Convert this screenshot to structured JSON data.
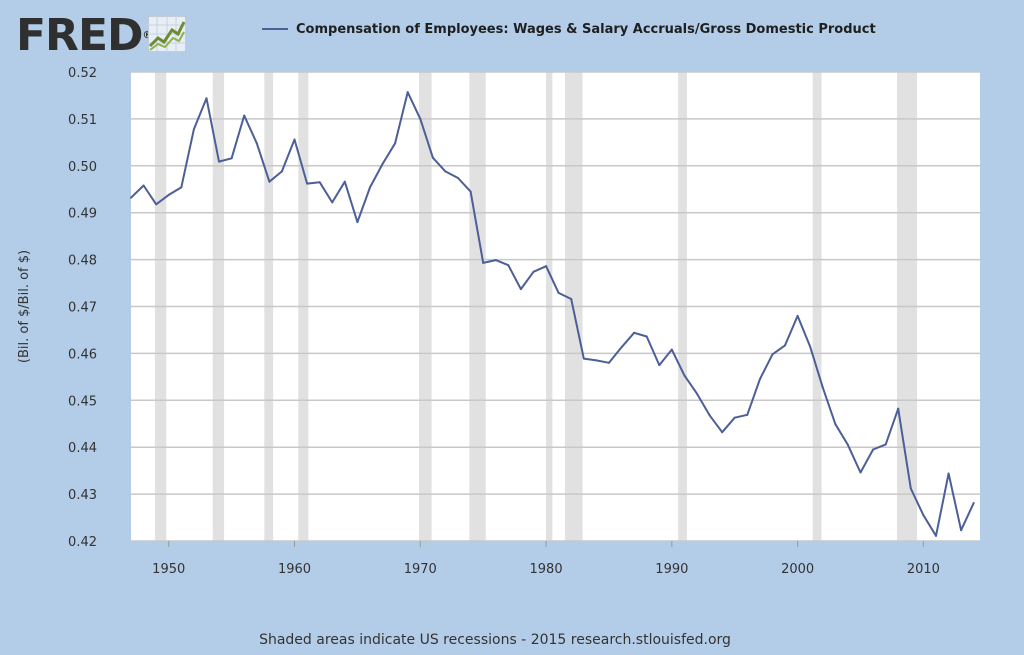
{
  "header": {
    "logo_text": "FRED",
    "logo_mark": "®"
  },
  "legend": {
    "label": "Compensation of Employees: Wages & Salary Accruals/Gross Domestic Product",
    "color": "#4c5f96"
  },
  "footer": {
    "note": "Shaded areas indicate US recessions - 2015 research.stlouisfed.org"
  },
  "colors": {
    "background": "#b3cde8",
    "plot": "#ffffff",
    "grid": "#c8c8c8",
    "recession": "#e1e1e1",
    "line": "#4c5f96"
  },
  "chart_data": {
    "type": "line",
    "title": "",
    "xlabel": "",
    "ylabel": "(Bil. of $/Bil. of $)",
    "xlim": [
      1947,
      2014.5
    ],
    "ylim": [
      0.42,
      0.52
    ],
    "xticks": [
      1950,
      1960,
      1970,
      1980,
      1990,
      2000,
      2010
    ],
    "yticks": [
      0.42,
      0.43,
      0.44,
      0.45,
      0.46,
      0.47,
      0.48,
      0.49,
      0.5,
      0.51,
      0.52
    ],
    "ytick_labels": [
      "0.42",
      "0.43",
      "0.44",
      "0.45",
      "0.46",
      "0.47",
      "0.48",
      "0.49",
      "0.50",
      "0.51",
      "0.52"
    ],
    "grid": true,
    "legend_position": "top",
    "recessions": [
      [
        1948.9,
        1949.8
      ],
      [
        1953.5,
        1954.4
      ],
      [
        1957.6,
        1958.3
      ],
      [
        1960.3,
        1961.1
      ],
      [
        1969.9,
        1970.9
      ],
      [
        1973.9,
        1975.2
      ],
      [
        1980.0,
        1980.5
      ],
      [
        1981.5,
        1982.9
      ],
      [
        1990.5,
        1991.2
      ],
      [
        2001.2,
        2001.9
      ],
      [
        2007.9,
        2009.5
      ]
    ],
    "series": [
      {
        "name": "Compensation of Employees: Wages & Salary Accruals/Gross Domestic Product",
        "x": [
          1947,
          1948,
          1949,
          1950,
          1951,
          1952,
          1953,
          1954,
          1955,
          1956,
          1957,
          1958,
          1959,
          1960,
          1961,
          1962,
          1963,
          1964,
          1965,
          1966,
          1967,
          1968,
          1969,
          1970,
          1971,
          1972,
          1973,
          1974,
          1975,
          1976,
          1977,
          1978,
          1979,
          1980,
          1981,
          1982,
          1983,
          1984,
          1985,
          1986,
          1987,
          1988,
          1989,
          1990,
          1991,
          1992,
          1993,
          1994,
          1995,
          1996,
          1997,
          1998,
          1999,
          2000,
          2001,
          2002,
          2003,
          2004,
          2005,
          2006,
          2007,
          2008,
          2009,
          2010,
          2011,
          2012,
          2013,
          2014
        ],
        "y": [
          0.4932,
          0.4958,
          0.4918,
          0.4938,
          0.4954,
          0.5078,
          0.5144,
          0.5009,
          0.5016,
          0.5107,
          0.5048,
          0.4966,
          0.4988,
          0.5056,
          0.4962,
          0.4965,
          0.4922,
          0.4966,
          0.488,
          0.4954,
          0.5004,
          0.5048,
          0.5157,
          0.51,
          0.5017,
          0.4988,
          0.4974,
          0.4945,
          0.4793,
          0.4799,
          0.4788,
          0.4737,
          0.4774,
          0.4786,
          0.4729,
          0.4716,
          0.4589,
          0.4585,
          0.458,
          0.4613,
          0.4644,
          0.4636,
          0.4575,
          0.4608,
          0.4553,
          0.4514,
          0.4468,
          0.4432,
          0.4463,
          0.4469,
          0.4545,
          0.4598,
          0.4617,
          0.468,
          0.4614,
          0.4527,
          0.4449,
          0.4405,
          0.4346,
          0.4395,
          0.4406,
          0.4482,
          0.4312,
          0.4255,
          0.4211,
          0.4344,
          0.4223,
          0.4281
        ]
      }
    ]
  }
}
